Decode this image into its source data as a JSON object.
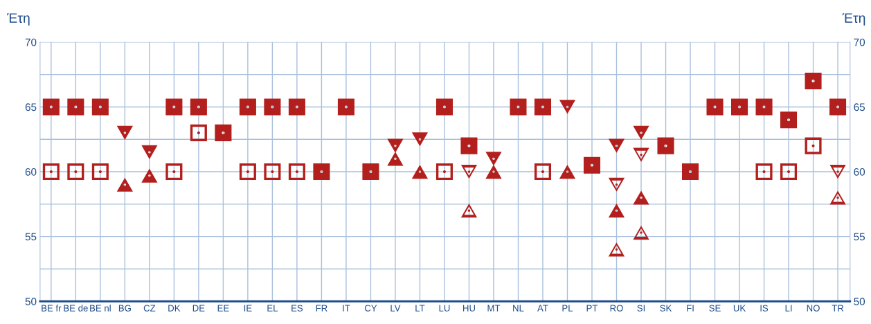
{
  "chart_data": {
    "type": "scatter",
    "ylabel": "Έτη",
    "y2label": "Έτη",
    "categories": [
      "BE fr",
      "BE de",
      "BE nl",
      "BG",
      "CZ",
      "DK",
      "DE",
      "EE",
      "IE",
      "EL",
      "ES",
      "FR",
      "IT",
      "CY",
      "LV",
      "LT",
      "LU",
      "HU",
      "MT",
      "NL",
      "AT",
      "PL",
      "PT",
      "RO",
      "SI",
      "SK",
      "FI",
      "SE",
      "UK",
      "IS",
      "LI",
      "NO",
      "TR"
    ],
    "series": [
      {
        "color": "#b31f1c",
        "marker": "square",
        "values": [
          65,
          65,
          65,
          null,
          null,
          65,
          65,
          63,
          65,
          65,
          65,
          60,
          65,
          60,
          null,
          null,
          65,
          62,
          null,
          65,
          65,
          null,
          60.5,
          null,
          null,
          62,
          60,
          65,
          65,
          65,
          64,
          67,
          65
        ]
      },
      {
        "color": "#b31f1c",
        "marker": "square-open",
        "values": [
          60,
          60,
          60,
          null,
          null,
          60,
          63,
          null,
          60,
          60,
          60,
          null,
          null,
          null,
          null,
          null,
          60,
          null,
          null,
          null,
          60,
          null,
          null,
          null,
          null,
          null,
          null,
          null,
          null,
          60,
          60,
          62,
          null
        ]
      },
      {
        "color": "#b31f1c",
        "marker": "triangle-down",
        "values": [
          null,
          null,
          null,
          63,
          61.5,
          null,
          null,
          null,
          null,
          null,
          null,
          null,
          null,
          null,
          62,
          62.5,
          null,
          null,
          61,
          null,
          null,
          65,
          null,
          62,
          63,
          null,
          null,
          null,
          null,
          null,
          null,
          null,
          null
        ]
      },
      {
        "color": "#b31f1c",
        "marker": "triangle",
        "values": [
          null,
          null,
          null,
          59,
          59.7,
          null,
          null,
          null,
          null,
          null,
          null,
          null,
          null,
          null,
          61,
          60,
          null,
          null,
          60,
          null,
          null,
          60,
          null,
          57,
          58,
          null,
          null,
          null,
          null,
          null,
          null,
          null,
          null
        ]
      },
      {
        "color": "#b31f1c",
        "marker": "triangle-down-open",
        "values": [
          null,
          null,
          null,
          null,
          null,
          null,
          null,
          null,
          null,
          null,
          null,
          null,
          null,
          null,
          null,
          null,
          null,
          60,
          null,
          null,
          null,
          null,
          null,
          59,
          61.3,
          null,
          null,
          null,
          null,
          null,
          null,
          null,
          60
        ]
      },
      {
        "color": "#b31f1c",
        "marker": "triangle-open",
        "values": [
          null,
          null,
          null,
          null,
          null,
          null,
          null,
          null,
          null,
          null,
          null,
          null,
          null,
          null,
          null,
          null,
          null,
          57,
          null,
          null,
          null,
          null,
          null,
          54,
          55.3,
          null,
          null,
          null,
          null,
          null,
          null,
          null,
          58
        ]
      }
    ],
    "ylim": [
      50,
      70
    ],
    "yticks": [
      50,
      {
        "value": 52.5,
        "label": null
      },
      55,
      {
        "value": 57.5,
        "label": null
      },
      60,
      {
        "value": 62.5,
        "label": null
      },
      65,
      {
        "value": 67.5,
        "label": null
      },
      70
    ],
    "y2lim": [
      50,
      70
    ],
    "y2ticks": [
      50,
      55,
      60,
      65,
      70
    ],
    "grid": true,
    "legend": false
  }
}
